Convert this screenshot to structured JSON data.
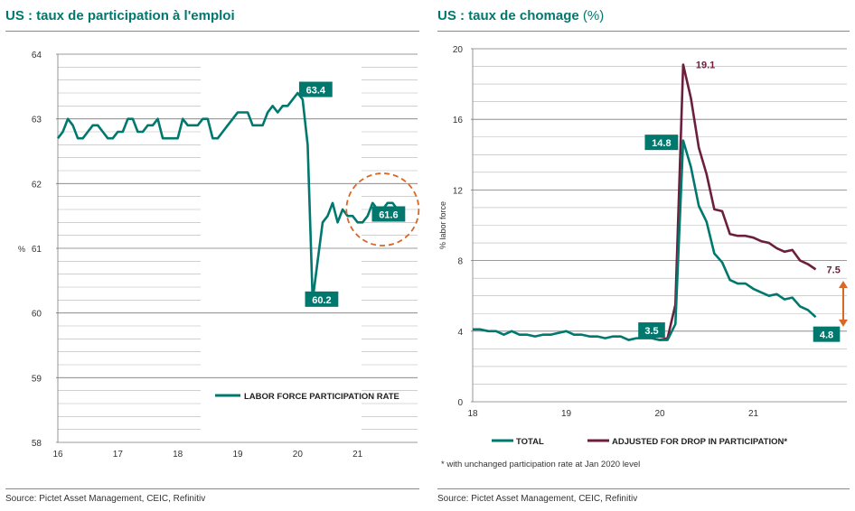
{
  "left": {
    "title_main": "US : taux de participation à l'emploi",
    "source": "Source: Pictet Asset Management, CEIC, Refinitiv"
  },
  "right": {
    "title_main": "US : taux de chomage",
    "title_unit": "(%)",
    "source": "Source: Pictet Asset Management, CEIC, Refinitiv",
    "footnote": "* with unchanged participation rate at Jan 2020 level"
  },
  "colors": {
    "teal": "#00786e",
    "purple": "#6b1f3d",
    "orange": "#d8672a",
    "grid": "#7a7a7a"
  },
  "chart_data": [
    {
      "type": "line",
      "title": "US : taux de participation à l'emploi",
      "ylabel": "%",
      "ylim": [
        58,
        64
      ],
      "yticks": [
        "58",
        "59",
        "60",
        "61",
        "62",
        "63",
        "64"
      ],
      "xlim": [
        2016,
        2022
      ],
      "xticks": [
        {
          "x": 2016,
          "label": "16"
        },
        {
          "x": 2017,
          "label": "17"
        },
        {
          "x": 2018,
          "label": "18"
        },
        {
          "x": 2019,
          "label": "19"
        },
        {
          "x": 2020,
          "label": "20"
        },
        {
          "x": 2021,
          "label": "21"
        }
      ],
      "grid": true,
      "legend_position": "bottom-right",
      "series": [
        {
          "name": "LABOR FORCE PARTICIPATION RATE",
          "color": "#00786e",
          "x": [
            2016.0,
            2016.083,
            2016.167,
            2016.25,
            2016.333,
            2016.417,
            2016.5,
            2016.583,
            2016.667,
            2016.75,
            2016.833,
            2016.917,
            2017.0,
            2017.083,
            2017.167,
            2017.25,
            2017.333,
            2017.417,
            2017.5,
            2017.583,
            2017.667,
            2017.75,
            2017.833,
            2017.917,
            2018.0,
            2018.083,
            2018.167,
            2018.25,
            2018.333,
            2018.417,
            2018.5,
            2018.583,
            2018.667,
            2018.75,
            2018.833,
            2018.917,
            2019.0,
            2019.083,
            2019.167,
            2019.25,
            2019.333,
            2019.417,
            2019.5,
            2019.583,
            2019.667,
            2019.75,
            2019.833,
            2019.917,
            2020.0,
            2020.083,
            2020.167,
            2020.25,
            2020.333,
            2020.417,
            2020.5,
            2020.583,
            2020.667,
            2020.75,
            2020.833,
            2020.917,
            2021.0,
            2021.083,
            2021.167,
            2021.25,
            2021.333,
            2021.417,
            2021.5,
            2021.583,
            2021.667
          ],
          "y": [
            62.7,
            62.8,
            63.0,
            62.9,
            62.7,
            62.7,
            62.8,
            62.9,
            62.9,
            62.8,
            62.7,
            62.7,
            62.8,
            62.8,
            63.0,
            63.0,
            62.8,
            62.8,
            62.9,
            62.9,
            63.0,
            62.7,
            62.7,
            62.7,
            62.7,
            63.0,
            62.9,
            62.9,
            62.9,
            63.0,
            63.0,
            62.7,
            62.7,
            62.8,
            62.9,
            63.0,
            63.1,
            63.1,
            63.1,
            62.9,
            62.9,
            62.9,
            63.1,
            63.2,
            63.1,
            63.2,
            63.2,
            63.3,
            63.4,
            63.3,
            62.6,
            60.2,
            60.8,
            61.4,
            61.5,
            61.7,
            61.4,
            61.6,
            61.5,
            61.5,
            61.4,
            61.4,
            61.5,
            61.7,
            61.6,
            61.6,
            61.7,
            61.7,
            61.6
          ]
        }
      ],
      "annotations": [
        {
          "x": 2020.0,
          "y": 63.4,
          "text": "63.4"
        },
        {
          "x": 2020.25,
          "y": 60.2,
          "text": "60.2"
        },
        {
          "x": 2021.667,
          "y": 61.6,
          "text": "61.6"
        }
      ]
    },
    {
      "type": "line",
      "title": "US : taux de chomage (%)",
      "ylabel": "% labor force",
      "ylim": [
        0,
        20
      ],
      "yticks": [
        "0",
        "4",
        "8",
        "12",
        "16",
        "20"
      ],
      "xlim": [
        2018,
        2022
      ],
      "xticks": [
        {
          "x": 2018,
          "label": "18"
        },
        {
          "x": 2019,
          "label": "19"
        },
        {
          "x": 2020,
          "label": "20"
        },
        {
          "x": 2021,
          "label": "21"
        }
      ],
      "grid": true,
      "legend_position": "bottom",
      "series": [
        {
          "name": "TOTAL",
          "color": "#00786e",
          "x": [
            2018.0,
            2018.083,
            2018.167,
            2018.25,
            2018.333,
            2018.417,
            2018.5,
            2018.583,
            2018.667,
            2018.75,
            2018.833,
            2018.917,
            2019.0,
            2019.083,
            2019.167,
            2019.25,
            2019.333,
            2019.417,
            2019.5,
            2019.583,
            2019.667,
            2019.75,
            2019.833,
            2019.917,
            2020.0,
            2020.083,
            2020.167,
            2020.25,
            2020.333,
            2020.417,
            2020.5,
            2020.583,
            2020.667,
            2020.75,
            2020.833,
            2020.917,
            2021.0,
            2021.083,
            2021.167,
            2021.25,
            2021.333,
            2021.417,
            2021.5,
            2021.583,
            2021.667
          ],
          "y": [
            4.1,
            4.1,
            4.0,
            4.0,
            3.8,
            4.0,
            3.8,
            3.8,
            3.7,
            3.8,
            3.8,
            3.9,
            4.0,
            3.8,
            3.8,
            3.7,
            3.7,
            3.6,
            3.7,
            3.7,
            3.5,
            3.6,
            3.6,
            3.6,
            3.5,
            3.5,
            4.4,
            14.8,
            13.3,
            11.1,
            10.2,
            8.4,
            7.9,
            6.9,
            6.7,
            6.7,
            6.4,
            6.2,
            6.0,
            6.1,
            5.8,
            5.9,
            5.4,
            5.2,
            4.8
          ]
        },
        {
          "name": "ADJUSTED FOR DROP IN PARTICIPATION*",
          "color": "#6b1f3d",
          "x": [
            2019.917,
            2020.0,
            2020.083,
            2020.167,
            2020.25,
            2020.333,
            2020.417,
            2020.5,
            2020.583,
            2020.667,
            2020.75,
            2020.833,
            2020.917,
            2021.0,
            2021.083,
            2021.167,
            2021.25,
            2021.333,
            2021.417,
            2021.5,
            2021.583,
            2021.667
          ],
          "y": [
            3.6,
            3.5,
            3.6,
            5.5,
            19.1,
            17.2,
            14.4,
            12.9,
            10.9,
            10.8,
            9.5,
            9.4,
            9.4,
            9.3,
            9.1,
            9.0,
            8.7,
            8.5,
            8.6,
            8.0,
            7.8,
            7.5
          ]
        }
      ],
      "annotations": [
        {
          "x": 2020.25,
          "y": 19.1,
          "text": "19.1"
        },
        {
          "x": 2020.25,
          "y": 14.8,
          "text": "14.8"
        },
        {
          "x": 2020.0,
          "y": 3.5,
          "text": "3.5"
        },
        {
          "x": 2021.667,
          "y": 7.5,
          "text": "7.5"
        },
        {
          "x": 2021.667,
          "y": 4.8,
          "text": "4.8"
        }
      ]
    }
  ]
}
